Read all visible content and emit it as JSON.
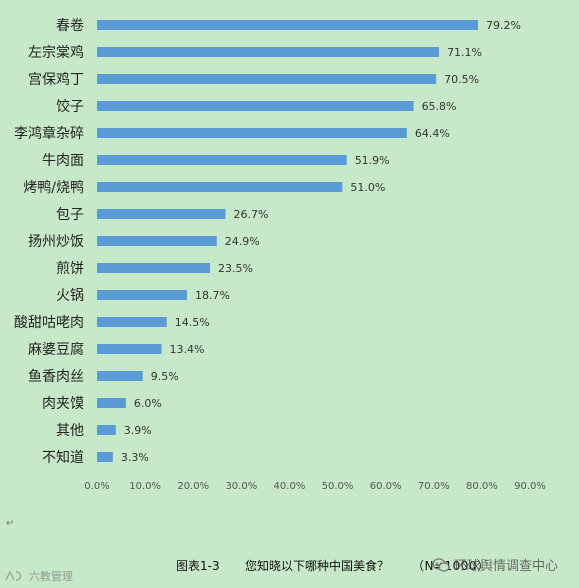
{
  "chart_data": {
    "type": "bar",
    "orientation": "horizontal",
    "categories": [
      "春卷",
      "左宗棠鸡",
      "宫保鸡丁",
      "饺子",
      "李鸿章杂碎",
      "牛肉面",
      "烤鸭/烧鸭",
      "包子",
      "扬州炒饭",
      "煎饼",
      "火锅",
      "酸甜咕咾肉",
      "麻婆豆腐",
      "鱼香肉丝",
      "肉夹馍",
      "其他",
      "不知道"
    ],
    "values": [
      79.2,
      71.1,
      70.5,
      65.8,
      64.4,
      51.9,
      51.0,
      26.7,
      24.9,
      23.5,
      18.7,
      14.5,
      13.4,
      9.5,
      6.0,
      3.9,
      3.3
    ],
    "value_labels": [
      "79.2%",
      "71.1%",
      "70.5%",
      "65.8%",
      "64.4%",
      "51.9%",
      "51.0%",
      "26.7%",
      "24.9%",
      "23.5%",
      "18.7%",
      "14.5%",
      "13.4%",
      "9.5%",
      "6.0%",
      "3.9%",
      "3.3%"
    ],
    "xlim": [
      0,
      90
    ],
    "xticks": [
      "0.0%",
      "10.0%",
      "20.0%",
      "30.0%",
      "40.0%",
      "50.0%",
      "60.0%",
      "70.0%",
      "80.0%",
      "90.0%"
    ],
    "title": "",
    "xlabel": "",
    "ylabel": "",
    "grid": false,
    "bar_color": "#5b9bd5",
    "background_color": "#c8e9c9"
  },
  "caption": {
    "figure_number": "图表1-3",
    "text": "您知晓以下哪种中国美食？",
    "sample_size": "（N=1000）"
  },
  "paragraph_mark": "↵",
  "watermark": {
    "right_text": "环球舆情调查中心",
    "right_icon": "wechat-icon",
    "left_text": "六教管理",
    "left_icon": "logo-icon"
  }
}
